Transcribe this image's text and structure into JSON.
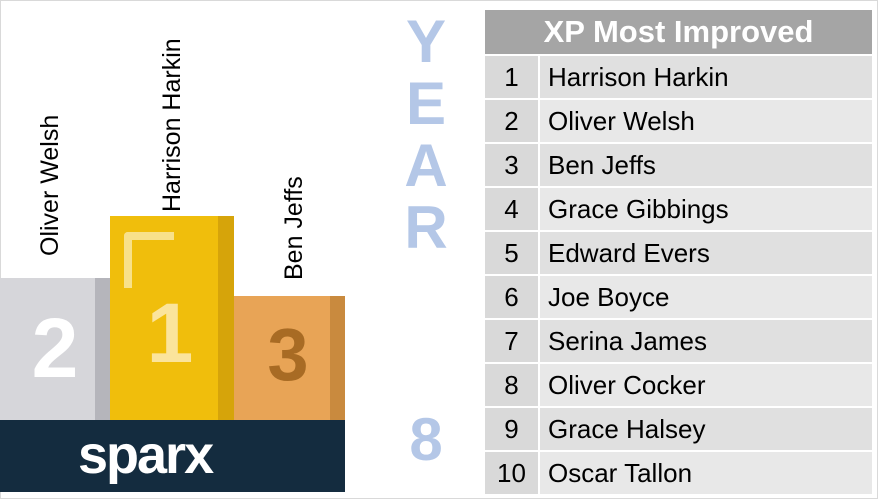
{
  "podium": {
    "first_name": "Harrison Harkin",
    "second_name": "Oliver Welsh",
    "third_name": "Ben Jeffs",
    "first_digit": "1",
    "second_digit": "2",
    "third_digit": "3",
    "colors": {
      "gold": "#f0be0c",
      "silver": "#d6d6da",
      "bronze": "#e8a456"
    },
    "brand": "sparx"
  },
  "year_label": {
    "letters": [
      "Y",
      "E",
      "A",
      "R"
    ],
    "number": "8"
  },
  "leaderboard": {
    "title": "XP Most Improved",
    "rows": [
      {
        "rank": "1",
        "name": "Harrison Harkin"
      },
      {
        "rank": "2",
        "name": "Oliver Welsh"
      },
      {
        "rank": "3",
        "name": "Ben Jeffs"
      },
      {
        "rank": "4",
        "name": "Grace Gibbings"
      },
      {
        "rank": "5",
        "name": "Edward Evers"
      },
      {
        "rank": "6",
        "name": "Joe Boyce"
      },
      {
        "rank": "7",
        "name": "Serina James"
      },
      {
        "rank": "8",
        "name": "Oliver Cocker"
      },
      {
        "rank": "9",
        "name": "Grace Halsey"
      },
      {
        "rank": "10",
        "name": "Oscar Tallon"
      }
    ]
  }
}
